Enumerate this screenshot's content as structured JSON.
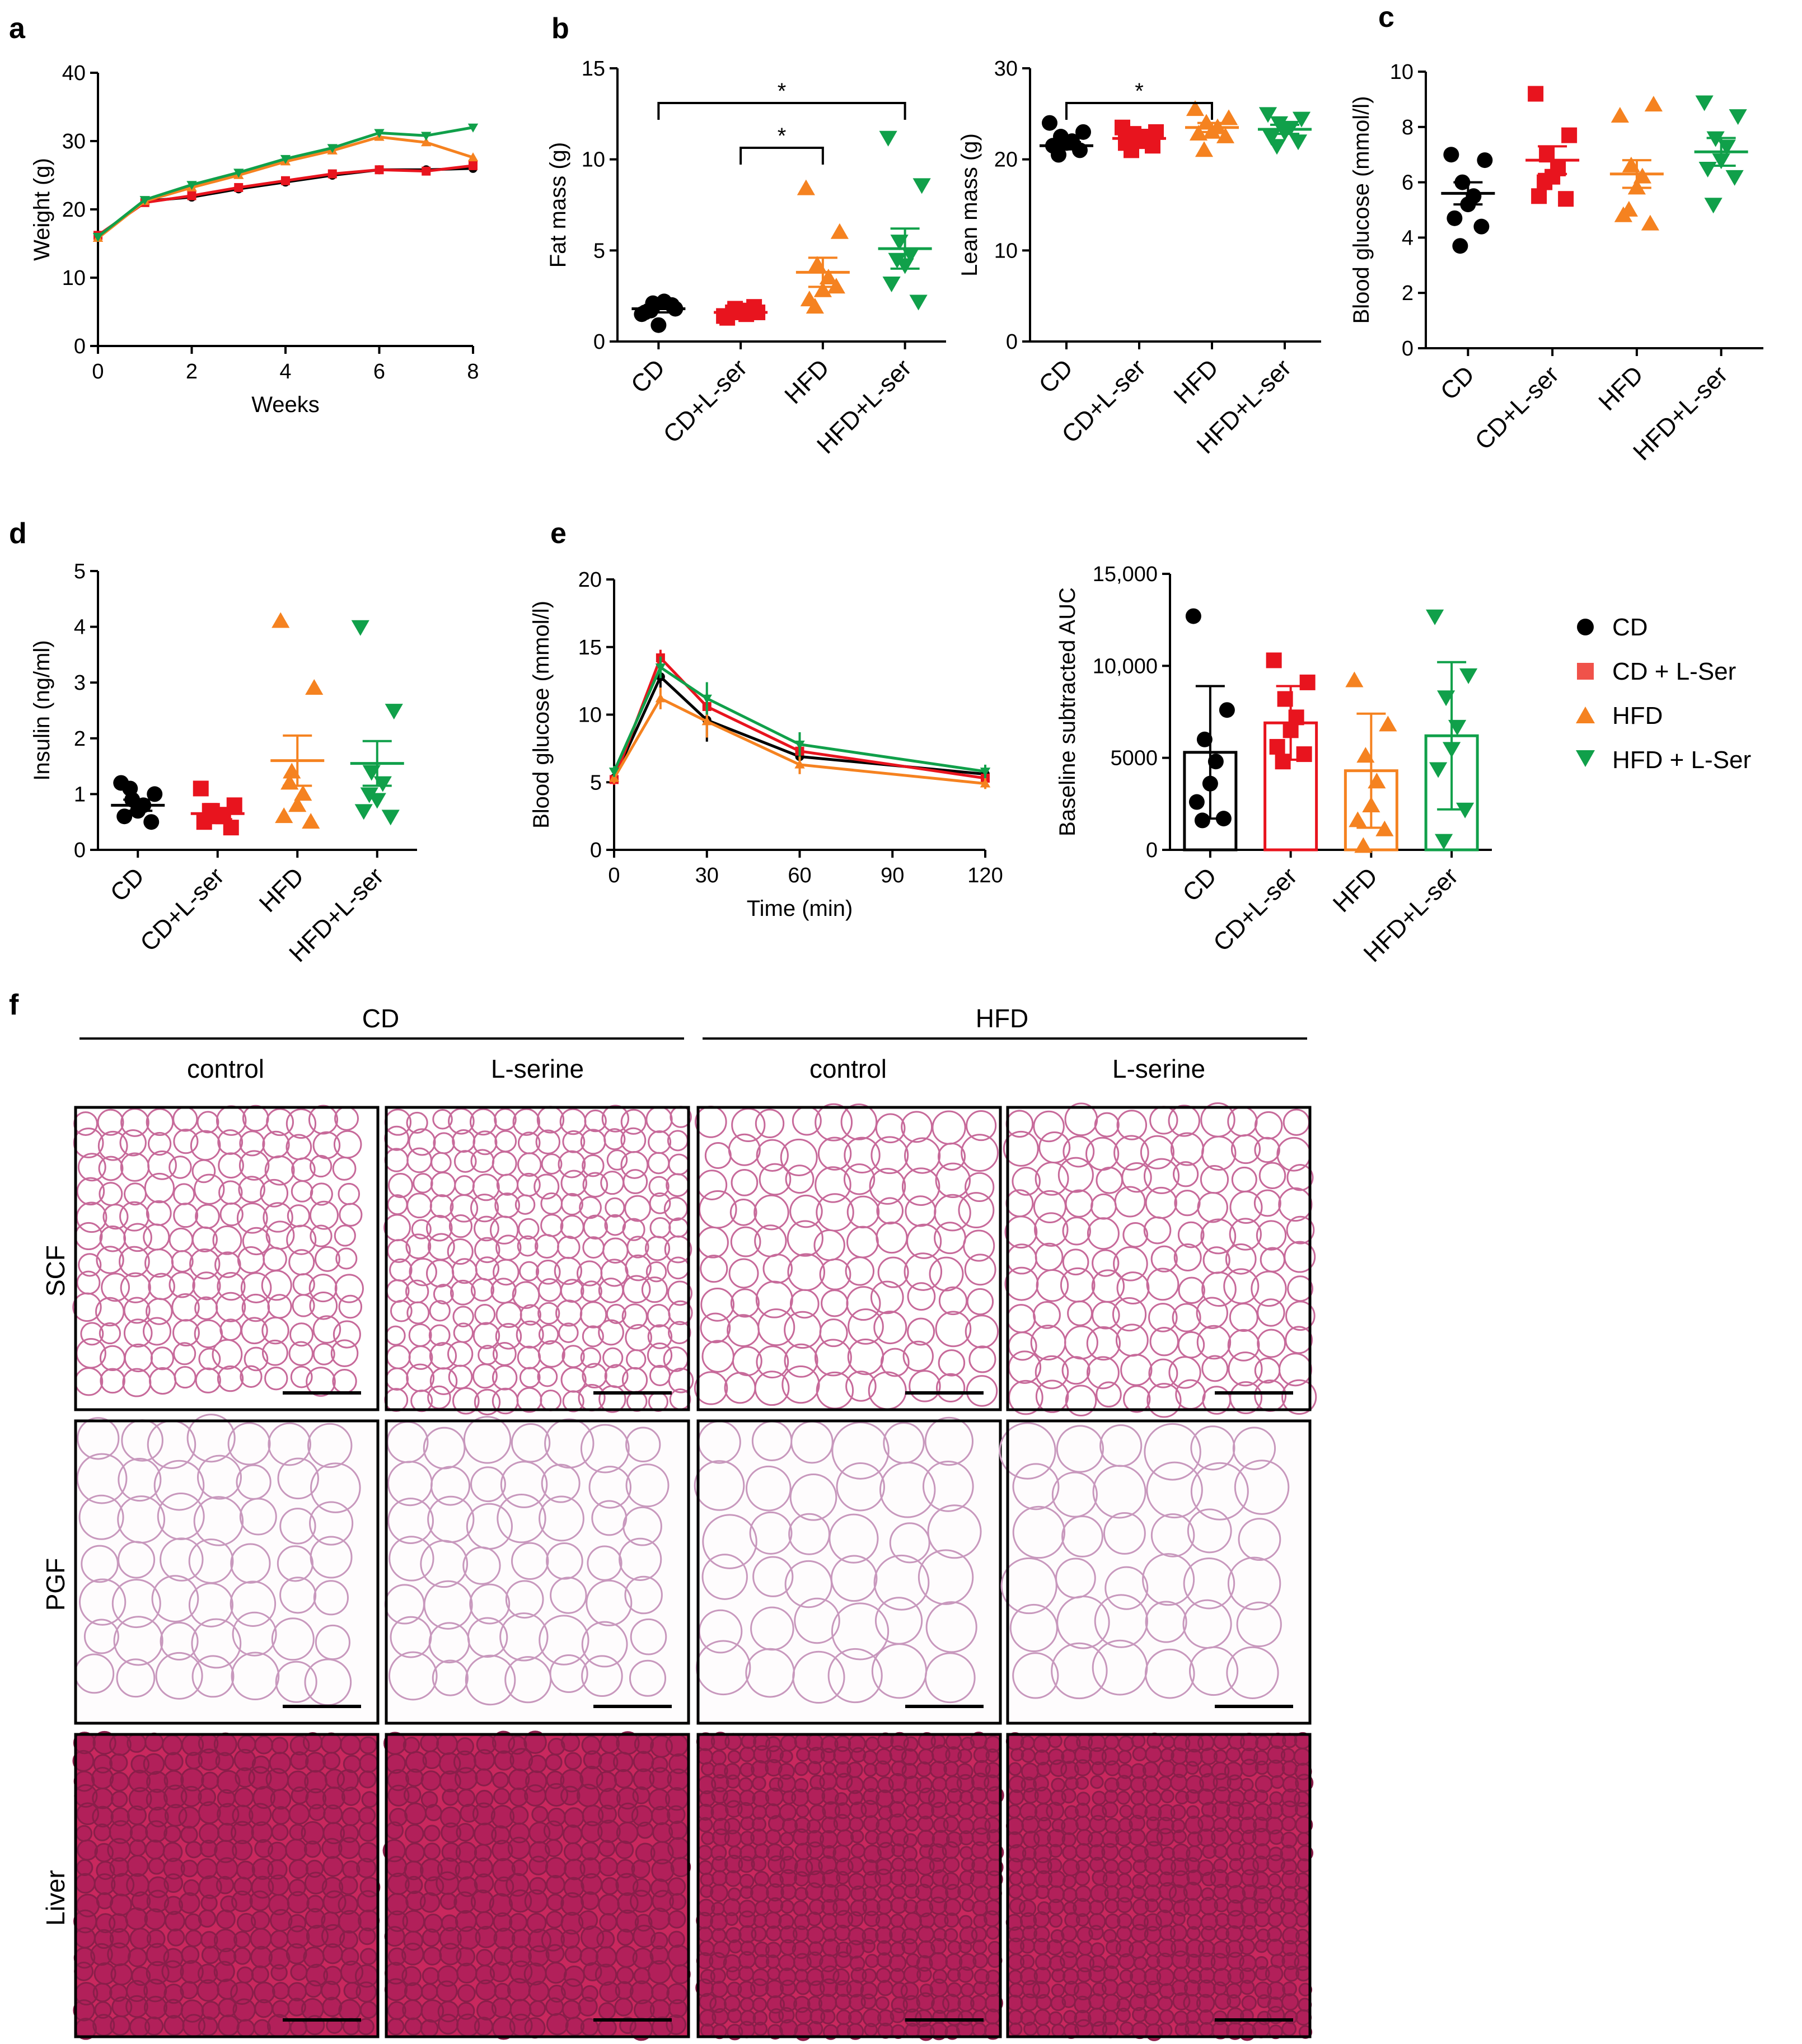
{
  "colors": {
    "CD": "#000000",
    "CD+L-ser": "#e8141e",
    "HFD": "#f58220",
    "HFD+L-ser": "#10a04a"
  },
  "legend": {
    "items": [
      "CD",
      "CD + L-Ser",
      "HFD",
      "HFD + L-Ser"
    ],
    "placement": "right"
  },
  "panels": {
    "f": {
      "label": "f",
      "groups": [
        "CD",
        "HFD"
      ],
      "columns": [
        "control",
        "L-serine",
        "control",
        "L-serine"
      ],
      "rows": [
        "SCF",
        "PGF",
        "Liver"
      ]
    }
  },
  "chart_data": [
    {
      "id": "a",
      "label": "a",
      "type": "line",
      "xlabel": "Weeks",
      "ylabel": "Weight (g)",
      "xlim": [
        0,
        8
      ],
      "ylim": [
        0,
        40
      ],
      "xticks": [
        "0",
        "2",
        "4",
        "6",
        "8"
      ],
      "yticks": [
        "0",
        "10",
        "20",
        "30",
        "40"
      ],
      "x": [
        0,
        1,
        2,
        3,
        4,
        5,
        6,
        7,
        8
      ],
      "series": [
        {
          "name": "CD",
          "values": [
            16,
            21.2,
            21.8,
            23,
            24,
            25,
            25.8,
            25.8,
            26
          ]
        },
        {
          "name": "CD+L-ser",
          "values": [
            16.2,
            21,
            22,
            23.2,
            24.2,
            25.2,
            25.8,
            25.6,
            26.4
          ]
        },
        {
          "name": "HFD",
          "values": [
            15.8,
            21.2,
            23.2,
            25,
            27,
            28.6,
            30.6,
            29.8,
            27.6
          ]
        },
        {
          "name": "HFD+L-ser",
          "values": [
            16,
            21.4,
            23.6,
            25.4,
            27.4,
            29,
            31.2,
            30.8,
            32
          ]
        }
      ]
    },
    {
      "id": "b1",
      "label": "b",
      "type": "scatter",
      "ylabel": "Fat mass (g)",
      "ylim": [
        0,
        15
      ],
      "yticks": [
        "0",
        "5",
        "10",
        "15"
      ],
      "categories": [
        "CD",
        "CD+L-ser",
        "HFD",
        "HFD+L-ser"
      ],
      "points": [
        [
          1.5,
          1.8,
          2.1,
          2.2,
          0.9,
          1.6,
          2.0,
          1.7
        ],
        [
          1.4,
          1.6,
          1.8,
          1.5,
          1.7,
          1.3,
          1.9,
          1.6
        ],
        [
          8.4,
          6.0,
          4.2,
          3.5,
          2.8,
          2.3,
          3.0,
          1.9
        ],
        [
          11.2,
          8.6,
          5.5,
          4.8,
          4.2,
          3.2,
          2.2,
          4.5
        ]
      ],
      "means": [
        1.8,
        1.6,
        3.8,
        5.1
      ],
      "sems": [
        0.2,
        0.1,
        0.8,
        1.1
      ],
      "significance": [
        {
          "from": 0,
          "to": 3,
          "text": "*"
        },
        {
          "from": 1,
          "to": 2,
          "text": "*"
        }
      ]
    },
    {
      "id": "b2",
      "type": "scatter",
      "ylabel": "Lean mass (g)",
      "ylim": [
        0,
        30
      ],
      "yticks": [
        "0",
        "10",
        "20",
        "30"
      ],
      "categories": [
        "CD",
        "CD+L-ser",
        "HFD",
        "HFD+L-ser"
      ],
      "points": [
        [
          24.0,
          23.0,
          22.5,
          22.0,
          21.8,
          21.5,
          21.0,
          20.5
        ],
        [
          23.5,
          23.0,
          22.8,
          22.5,
          22.0,
          21.8,
          21.5,
          21.0
        ],
        [
          25.5,
          24.5,
          24.0,
          23.5,
          23.0,
          22.8,
          22.5,
          21.0
        ],
        [
          25.0,
          24.5,
          24.0,
          23.5,
          23.0,
          22.5,
          22.0,
          21.5
        ]
      ],
      "means": [
        21.5,
        22.3,
        23.5,
        23.3
      ],
      "sems": [
        0.4,
        0.4,
        0.5,
        0.5
      ],
      "significance": [
        {
          "from": 0,
          "to": 2,
          "text": "*"
        }
      ]
    },
    {
      "id": "c",
      "label": "c",
      "type": "scatter",
      "ylabel": "Blood glucose (mmol/l)",
      "ylim": [
        0,
        10
      ],
      "yticks": [
        "0",
        "2",
        "4",
        "6",
        "8",
        "10"
      ],
      "categories": [
        "CD",
        "CD+L-ser",
        "HFD",
        "HFD+L-ser"
      ],
      "points": [
        [
          7.0,
          6.8,
          6.0,
          5.5,
          5.2,
          4.7,
          4.4,
          3.7
        ],
        [
          9.2,
          7.7,
          7.0,
          6.5,
          6.2,
          5.5,
          5.4,
          6.0
        ],
        [
          8.4,
          8.8,
          6.6,
          6.2,
          5.8,
          4.8,
          4.5,
          5.0
        ],
        [
          8.9,
          8.4,
          7.6,
          7.3,
          6.8,
          6.5,
          6.2,
          5.2
        ]
      ],
      "means": [
        5.6,
        6.8,
        6.3,
        7.1
      ],
      "sems": [
        0.4,
        0.5,
        0.5,
        0.5
      ]
    },
    {
      "id": "d",
      "label": "d",
      "type": "scatter",
      "ylabel": "Insulin (ng/ml)",
      "ylim": [
        0,
        5
      ],
      "yticks": [
        "0",
        "1",
        "2",
        "3",
        "4",
        "5"
      ],
      "categories": [
        "CD",
        "CD+L-ser",
        "HFD",
        "HFD+L-ser"
      ],
      "points": [
        [
          1.2,
          1.0,
          0.9,
          0.8,
          0.7,
          0.6,
          0.5,
          1.1
        ],
        [
          1.1,
          0.8,
          0.7,
          0.6,
          0.6,
          0.5,
          0.4,
          0.7
        ],
        [
          4.1,
          2.9,
          1.4,
          1.0,
          0.8,
          0.6,
          0.5,
          1.2
        ],
        [
          4.0,
          2.5,
          1.4,
          1.2,
          0.9,
          0.7,
          0.6,
          1.0
        ]
      ],
      "means": [
        0.8,
        0.65,
        1.6,
        1.55
      ],
      "sems": [
        0.1,
        0.1,
        0.45,
        0.4
      ]
    },
    {
      "id": "e1",
      "label": "e",
      "type": "line",
      "xlabel": "Time (min)",
      "ylabel": "Blood glucose (mmol/l)",
      "xlim": [
        0,
        120
      ],
      "ylim": [
        0,
        20
      ],
      "xticks": [
        "0",
        "30",
        "60",
        "90",
        "120"
      ],
      "yticks": [
        "0",
        "5",
        "10",
        "15",
        "20"
      ],
      "x": [
        0,
        15,
        30,
        60,
        120
      ],
      "series": [
        {
          "name": "CD",
          "values": [
            5.3,
            12.8,
            9.6,
            6.9,
            5.6
          ],
          "err": [
            0.4,
            0.8,
            1.6,
            0.7,
            0.6
          ]
        },
        {
          "name": "CD+L-ser",
          "values": [
            5.2,
            14.2,
            10.6,
            7.3,
            5.3
          ],
          "err": [
            0.4,
            0.6,
            1.0,
            0.7,
            0.4
          ]
        },
        {
          "name": "HFD",
          "values": [
            5.3,
            11.2,
            9.5,
            6.3,
            4.9
          ],
          "err": [
            0.4,
            0.8,
            1.2,
            0.7,
            0.4
          ]
        },
        {
          "name": "HFD+L-ser",
          "values": [
            5.8,
            13.5,
            11.2,
            7.8,
            5.8
          ],
          "err": [
            0.4,
            0.8,
            1.2,
            0.9,
            0.5
          ]
        }
      ]
    },
    {
      "id": "e2",
      "type": "bar",
      "ylabel": "Baseline subtracted AUC",
      "ylim": [
        0,
        15000
      ],
      "yticks": [
        "0",
        "5000",
        "10,000",
        "15,000"
      ],
      "categories": [
        "CD",
        "CD+L-ser",
        "HFD",
        "HFD+L-ser"
      ],
      "values": [
        5300,
        6900,
        4300,
        6200
      ],
      "sds": [
        3600,
        2000,
        3100,
        4000
      ],
      "points": [
        [
          12700,
          7600,
          6000,
          4800,
          3600,
          2600,
          1700,
          1600
        ],
        [
          10300,
          9100,
          8200,
          7200,
          6500,
          5600,
          5200,
          4800
        ],
        [
          9200,
          6800,
          5100,
          3700,
          2400,
          1600,
          1100,
          200
        ],
        [
          12700,
          9500,
          8300,
          6700,
          5500,
          4400,
          2200,
          500
        ]
      ]
    }
  ]
}
